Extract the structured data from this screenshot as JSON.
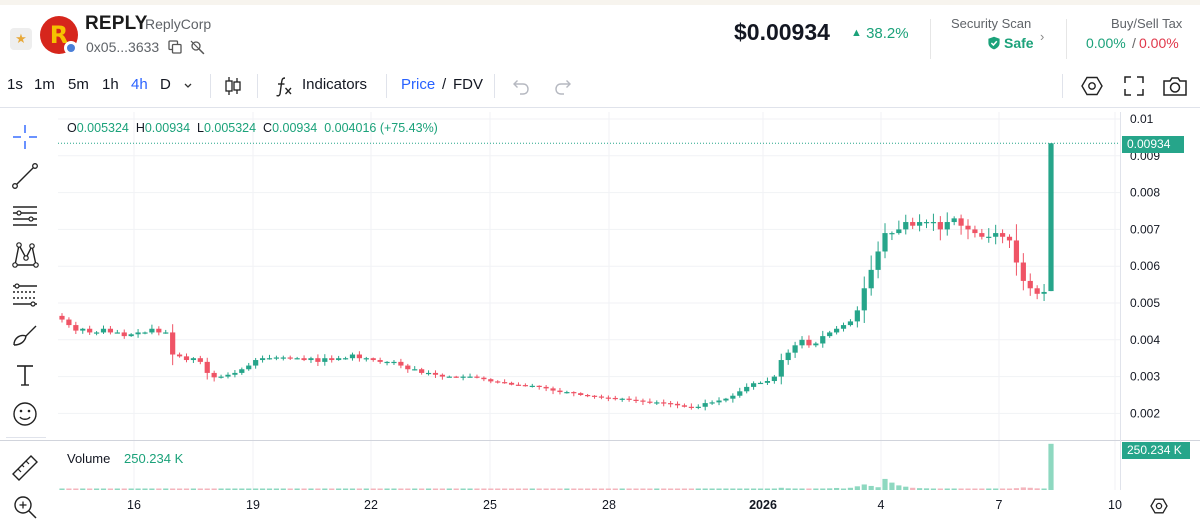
{
  "token": {
    "symbol": "REPLY",
    "name": "ReplyCorp",
    "address": "0x05...3633",
    "logo_letter": "R"
  },
  "price": {
    "value": "$0.00934",
    "change": "38.2%",
    "change_arrow": "▲"
  },
  "security": {
    "label": "Security Scan",
    "status": "Safe"
  },
  "tax": {
    "label": "Buy/Sell Tax",
    "buy": "0.00%",
    "sell": "0.00%",
    "separator": "/"
  },
  "toolbar": {
    "timeframes": [
      "1s",
      "1m",
      "5m",
      "1h",
      "4h",
      "D"
    ],
    "active_timeframe": "4h",
    "indicators_label": "Indicators",
    "price_label": "Price",
    "fdv_label": "FDV",
    "slash": "/"
  },
  "legend": {
    "o_label": "O",
    "o_value": "0.005324",
    "h_label": "H",
    "h_value": "0.00934",
    "l_label": "L",
    "l_value": "0.005324",
    "c_label": "C",
    "c_value": "0.00934",
    "change": "0.004016 (+75.43%)"
  },
  "volume": {
    "label": "Volume",
    "value": "250.234 K"
  },
  "badges": {
    "last_price": "0.00934",
    "last_volume": "250.234 K"
  },
  "colors": {
    "up": "#26a58a",
    "down": "#ef5466",
    "accent": "#2962ff"
  },
  "chart_data": {
    "type": "candlestick",
    "title": "REPLY / 4h",
    "ylim": [
      0.0015,
      0.0102
    ],
    "y_ticks": [
      "0.01",
      "0.009",
      "0.008",
      "0.007",
      "0.006",
      "0.005",
      "0.004",
      "0.003",
      "0.002"
    ],
    "y_tick_values": [
      0.01,
      0.009,
      0.008,
      0.007,
      0.006,
      0.005,
      0.004,
      0.003,
      0.002
    ],
    "x_ticks": [
      "16",
      "19",
      "22",
      "25",
      "28",
      "2026",
      "4",
      "7",
      "10"
    ],
    "x_tick_bold": [
      false,
      false,
      false,
      false,
      false,
      true,
      false,
      false,
      false
    ],
    "close_path": [
      0.00455,
      0.0044,
      0.00425,
      0.0043,
      0.0042,
      0.0042,
      0.0043,
      0.0042,
      0.0042,
      0.0041,
      0.00415,
      0.0042,
      0.0042,
      0.0043,
      0.0042,
      0.0042,
      0.0036,
      0.00355,
      0.00345,
      0.0035,
      0.0034,
      0.0031,
      0.00298,
      0.003,
      0.00305,
      0.0031,
      0.0032,
      0.0033,
      0.00345,
      0.0035,
      0.0035,
      0.00352,
      0.00352,
      0.0035,
      0.0035,
      0.00345,
      0.0035,
      0.0034,
      0.0035,
      0.00345,
      0.0035,
      0.0035,
      0.0036,
      0.0035,
      0.0035,
      0.00345,
      0.0034,
      0.0034,
      0.0034,
      0.0033,
      0.0032,
      0.0032,
      0.0031,
      0.0031,
      0.00305,
      0.003,
      0.003,
      0.00298,
      0.003,
      0.003,
      0.00297,
      0.00293,
      0.00287,
      0.00285,
      0.00283,
      0.00278,
      0.00277,
      0.00275,
      0.00275,
      0.00272,
      0.00268,
      0.00262,
      0.00258,
      0.00258,
      0.00255,
      0.0025,
      0.00248,
      0.00246,
      0.00243,
      0.00242,
      0.0024,
      0.0024,
      0.00237,
      0.00235,
      0.00232,
      0.0023,
      0.0023,
      0.00228,
      0.00226,
      0.00222,
      0.00218,
      0.00216,
      0.00218,
      0.00228,
      0.0023,
      0.00235,
      0.0024,
      0.00248,
      0.0026,
      0.00272,
      0.00282,
      0.00283,
      0.00288,
      0.003,
      0.00345,
      0.00365,
      0.00385,
      0.004,
      0.00385,
      0.0039,
      0.0041,
      0.0042,
      0.0043,
      0.0044,
      0.0045,
      0.0048,
      0.0054,
      0.0059,
      0.0064,
      0.0069,
      0.0069,
      0.007,
      0.0072,
      0.0071,
      0.0072,
      0.0072,
      0.0072,
      0.007,
      0.0072,
      0.0073,
      0.0071,
      0.007,
      0.0069,
      0.0068,
      0.0068,
      0.0069,
      0.0068,
      0.0067,
      0.0061,
      0.0056,
      0.0054,
      0.00525,
      0.0053,
      0.00934
    ],
    "last_candle": {
      "open": 0.005324,
      "high": 0.00934,
      "low": 0.005324,
      "close": 0.00934
    },
    "volume_ylim": [
      0,
      260000
    ],
    "volume_values": [
      3000,
      3000,
      3000,
      3000,
      3000,
      3000,
      3000,
      3000,
      3000,
      3000,
      3000,
      3000,
      3000,
      3000,
      3000,
      3000,
      3000,
      3000,
      3000,
      3000,
      3000,
      3000,
      3000,
      3000,
      3000,
      3000,
      3000,
      3000,
      3000,
      3000,
      3000,
      3000,
      3000,
      3000,
      3000,
      3000,
      3000,
      3000,
      3000,
      3000,
      3000,
      3000,
      3000,
      3000,
      3000,
      3000,
      3000,
      3000,
      3000,
      3000,
      3000,
      3000,
      3000,
      3000,
      3000,
      3000,
      3000,
      3000,
      3000,
      3000,
      3000,
      3000,
      3000,
      3000,
      3000,
      3000,
      3000,
      3000,
      3000,
      3000,
      3000,
      3000,
      3000,
      3000,
      3000,
      3000,
      3000,
      3000,
      3000,
      3000,
      3000,
      3000,
      3000,
      3000,
      3000,
      3000,
      3000,
      3000,
      3000,
      3000,
      3000,
      3000,
      3000,
      3000,
      3000,
      3000,
      3000,
      3000,
      3000,
      3000,
      3000,
      3000,
      4000,
      6000,
      12000,
      9000,
      7000,
      8000,
      5000,
      6000,
      7000,
      9000,
      11000,
      8000,
      12000,
      20000,
      30000,
      22000,
      15000,
      60000,
      40000,
      25000,
      18000,
      12000,
      10000,
      9000,
      8000,
      6000,
      7000,
      5000,
      6000,
      6000,
      5000,
      5000,
      5000,
      6000,
      6000,
      5000,
      10000,
      14000,
      12000,
      9000,
      8000,
      250234
    ]
  }
}
